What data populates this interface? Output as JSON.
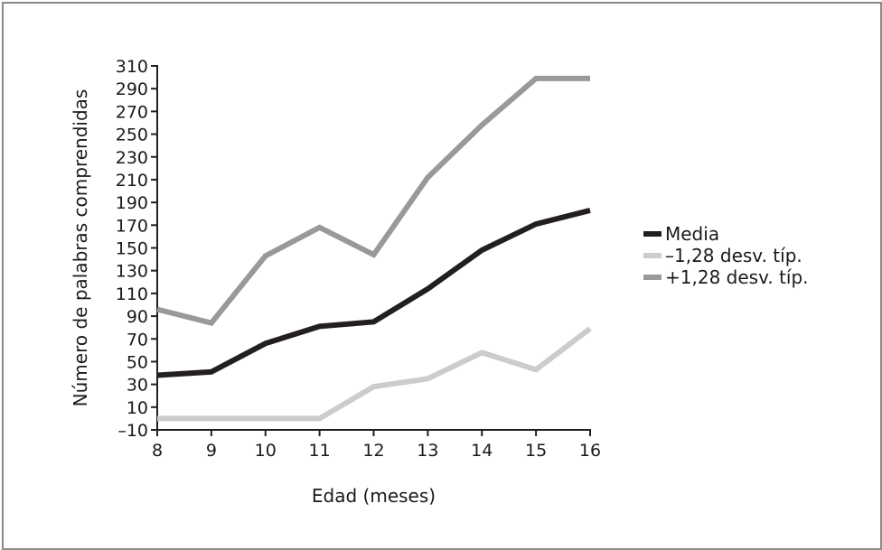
{
  "chart_data": {
    "type": "line",
    "xlabel": "Edad (meses)",
    "ylabel": "Número de palabras comprendidas",
    "x": [
      8,
      9,
      10,
      11,
      12,
      13,
      14,
      15,
      16
    ],
    "xlim": [
      8,
      16
    ],
    "ylim": [
      -10,
      310
    ],
    "y_ticks": [
      -10,
      10,
      30,
      50,
      70,
      90,
      110,
      130,
      150,
      170,
      190,
      210,
      230,
      250,
      270,
      290,
      310
    ],
    "y_tick_labels": [
      "–10",
      "10",
      "30",
      "50",
      "70",
      "90",
      "110",
      "130",
      "150",
      "170",
      "190",
      "210",
      "230",
      "250",
      "270",
      "290",
      "310"
    ],
    "x_tick_labels": [
      "8",
      "9",
      "10",
      "11",
      "12",
      "13",
      "14",
      "15",
      "16"
    ],
    "grid": false,
    "legend_position": "right",
    "series": [
      {
        "name": "Media",
        "color": "#231f20",
        "values": [
          38,
          41,
          66,
          81,
          85,
          114,
          148,
          171,
          183
        ]
      },
      {
        "name": "–1,28 desv. típ.",
        "color": "#cccccc",
        "values": [
          0,
          0,
          0,
          0,
          28,
          35,
          58,
          43,
          79
        ]
      },
      {
        "name": "+1,28 desv. típ.",
        "color": "#999999",
        "values": [
          96,
          84,
          143,
          168,
          144,
          212,
          258,
          299,
          299
        ]
      }
    ]
  }
}
